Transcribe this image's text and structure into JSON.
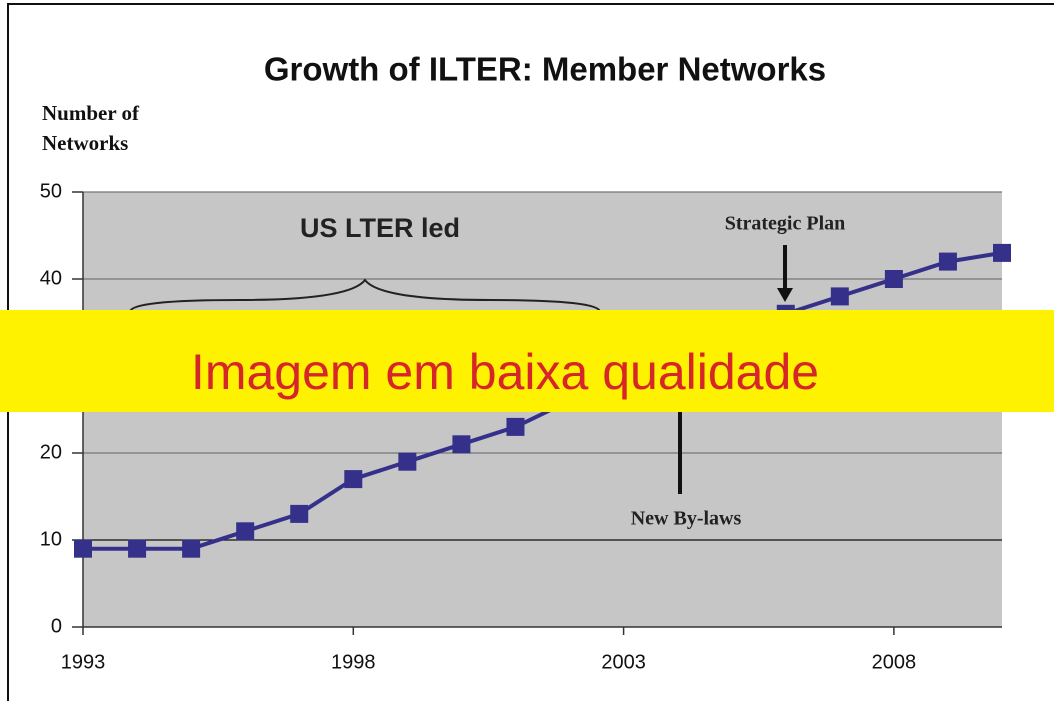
{
  "chart_data": {
    "type": "line",
    "title": "Growth of ILTER:  Member Networks",
    "ylabel": "Number of Networks",
    "x": [
      1993,
      1994,
      1995,
      1996,
      1997,
      1998,
      1999,
      2000,
      2001,
      2002,
      2003,
      2004,
      2005,
      2006,
      2007,
      2008,
      2009,
      2010
    ],
    "series": [
      {
        "name": "Member Networks",
        "color": "#35318a",
        "values": [
          9,
          9,
          9,
          11,
          13,
          17,
          19,
          21,
          23,
          26,
          28,
          30,
          33,
          36,
          38,
          40,
          42,
          43
        ]
      }
    ],
    "xlim": [
      1993,
      2010
    ],
    "xticks": [
      1993,
      1998,
      2003,
      2008
    ],
    "ylim": [
      0,
      50
    ],
    "yticks": [
      0,
      10,
      20,
      30,
      40,
      50
    ],
    "grid": true,
    "annotations": [
      "US LTER  led",
      "Strategic Plan",
      "New By-laws"
    ],
    "overlay_banner": "Imagem em baixa qualidade"
  }
}
